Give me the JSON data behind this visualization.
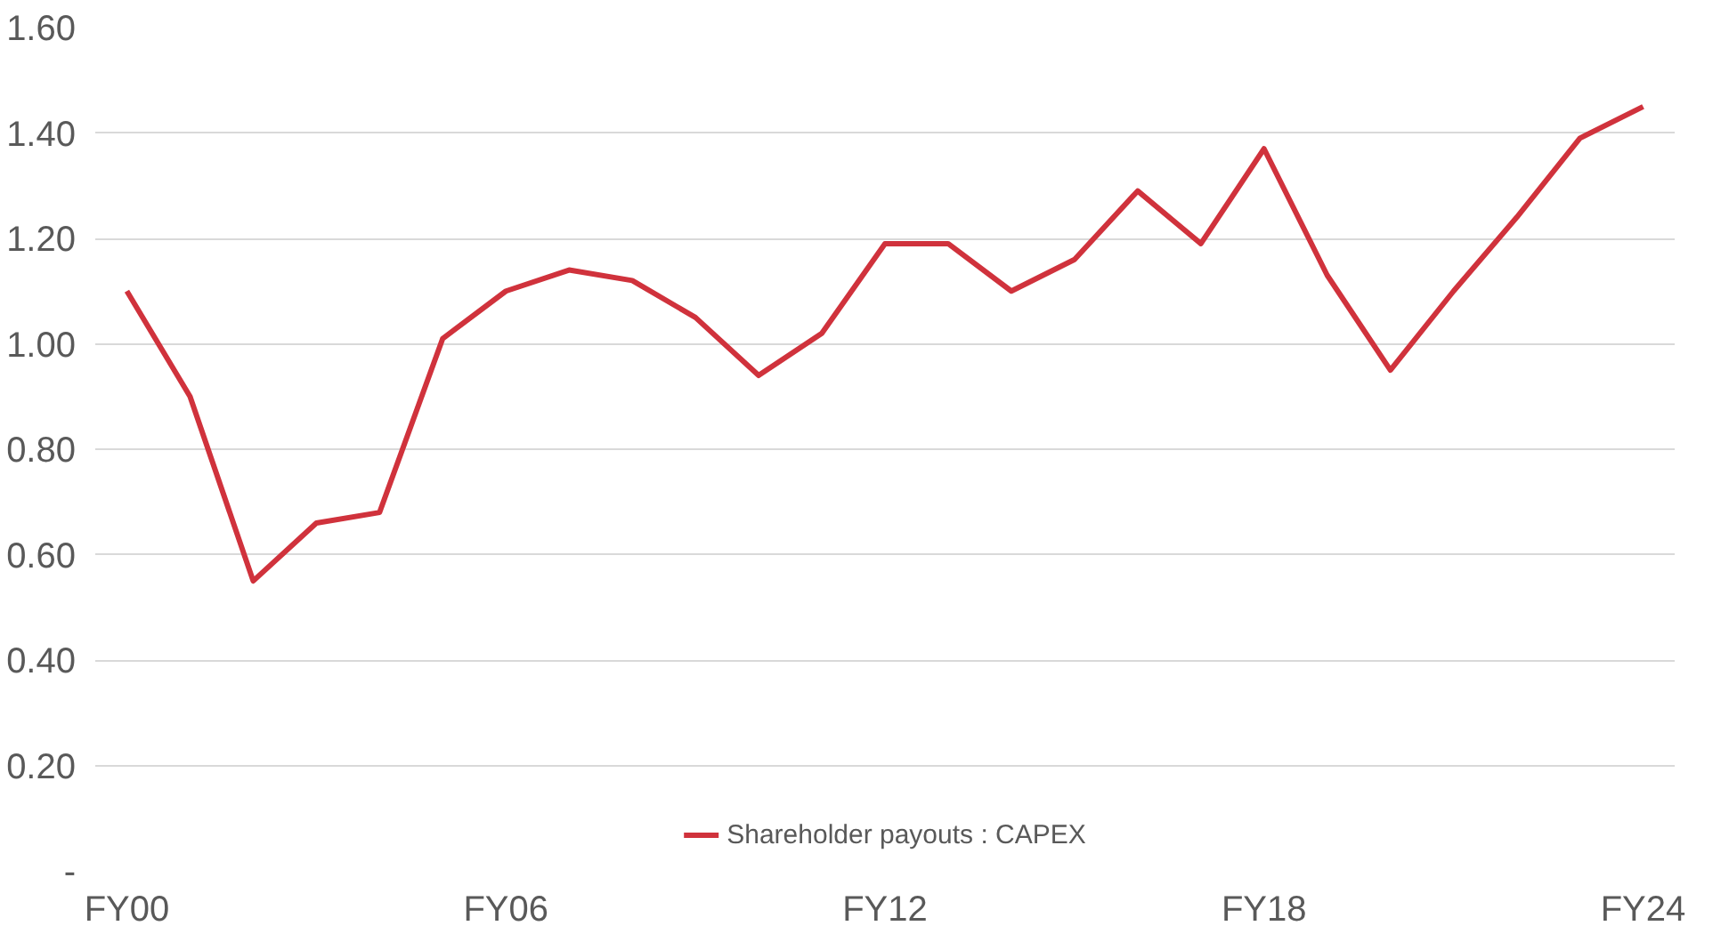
{
  "chart_data": {
    "type": "line",
    "categories": [
      "FY00",
      null,
      null,
      null,
      null,
      null,
      "FY06",
      null,
      null,
      null,
      null,
      null,
      "FY12",
      null,
      null,
      null,
      null,
      null,
      "FY18",
      null,
      null,
      null,
      null,
      null,
      "FY24"
    ],
    "series": [
      {
        "name": "Shareholder payouts : CAPEX",
        "color": "#d0323c",
        "values": [
          1.1,
          0.9,
          0.55,
          0.66,
          0.68,
          1.01,
          1.1,
          1.14,
          1.12,
          1.05,
          0.94,
          1.02,
          1.19,
          1.19,
          1.1,
          1.16,
          1.29,
          1.19,
          1.37,
          1.13,
          0.95,
          1.1,
          1.24,
          1.39,
          1.45
        ]
      }
    ],
    "ylim": [
      0,
      1.6
    ],
    "yticks": [
      {
        "value": 0,
        "label": "-"
      },
      {
        "value": 0.2,
        "label": "0.20"
      },
      {
        "value": 0.4,
        "label": "0.40"
      },
      {
        "value": 0.6,
        "label": "0.60"
      },
      {
        "value": 0.8,
        "label": "0.80"
      },
      {
        "value": 1.0,
        "label": "1.00"
      },
      {
        "value": 1.2,
        "label": "1.20"
      },
      {
        "value": 1.4,
        "label": "1.40"
      },
      {
        "value": 1.6,
        "label": "1.60"
      }
    ],
    "grid": "y",
    "legend": "bottom",
    "marker": "none",
    "line_style": "solid"
  }
}
